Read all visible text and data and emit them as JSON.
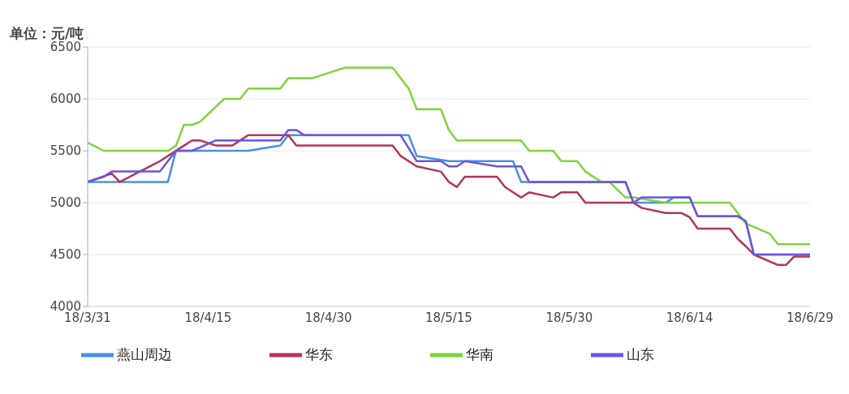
{
  "chart_data": {
    "type": "line",
    "ylabel": "单位：元/吨",
    "xlim": [
      "--03-31",
      "--06-29"
    ],
    "xticks": [
      {
        "value": "--03-31",
        "label": "18/3/31"
      },
      {
        "value": "--04-15",
        "label": "18/4/15"
      },
      {
        "value": "--04-30",
        "label": "18/4/30"
      },
      {
        "value": "--05-15",
        "label": "18/5/15"
      },
      {
        "value": "--05-30",
        "label": "18/5/30"
      },
      {
        "value": "--06-14",
        "label": "18/6/14"
      },
      {
        "value": "--06-29",
        "label": "18/6/29"
      }
    ],
    "ylim": [
      4000,
      6500
    ],
    "yticks": [
      4000,
      4500,
      5000,
      5500,
      6000,
      6500
    ],
    "grid": "y",
    "legend": "bottom",
    "marker": "none",
    "line_style": "solid",
    "series": [
      {
        "name": "燕山周边",
        "color": "#4a90e2",
        "x": [
          "--03-31",
          "--04-10",
          "--04-11",
          "--04-20",
          "--04-24",
          "--04-25",
          "--05-10",
          "--05-11",
          "--05-15",
          "--05-23",
          "--05-24",
          "--06-06",
          "--06-07",
          "--06-11",
          "--06-12",
          "--06-14",
          "--06-15",
          "--06-20",
          "--06-21",
          "--06-22",
          "--06-29"
        ],
        "values": [
          5200,
          5200,
          5500,
          5500,
          5550,
          5650,
          5650,
          5450,
          5400,
          5400,
          5200,
          5200,
          5000,
          5000,
          5050,
          5050,
          4870,
          4870,
          4820,
          4500,
          4500
        ]
      },
      {
        "name": "华东",
        "color": "#b5345a",
        "x": [
          "--03-31",
          "--04-03",
          "--04-04",
          "--04-09",
          "--04-10",
          "--04-12",
          "--04-13",
          "--04-14",
          "--04-16",
          "--04-18",
          "--04-20",
          "--04-25",
          "--04-26",
          "--05-08",
          "--05-09",
          "--05-11",
          "--05-14",
          "--05-15",
          "--05-16",
          "--05-17",
          "--05-21",
          "--05-22",
          "--05-24",
          "--05-25",
          "--05-28",
          "--05-29",
          "--05-31",
          "--06-01",
          "--06-07",
          "--06-08",
          "--06-11",
          "--06-13",
          "--06-14",
          "--06-15",
          "--06-19",
          "--06-20",
          "--06-21",
          "--06-22",
          "--06-25",
          "--06-26",
          "--06-27",
          "--06-29"
        ],
        "values": [
          5200,
          5280,
          5200,
          5400,
          5450,
          5550,
          5600,
          5600,
          5550,
          5550,
          5650,
          5650,
          5550,
          5550,
          5450,
          5350,
          5300,
          5200,
          5150,
          5250,
          5250,
          5150,
          5050,
          5100,
          5050,
          5100,
          5100,
          5000,
          5000,
          4950,
          4900,
          4900,
          4860,
          4750,
          4750,
          4650,
          4580,
          4500,
          4400,
          4400,
          4480,
          4480
        ]
      },
      {
        "name": "华南",
        "color": "#7ed43a",
        "x": [
          "--03-31",
          "--04-02",
          "--04-10",
          "--04-11",
          "--04-12",
          "--04-13",
          "--04-14",
          "--04-17",
          "--04-19",
          "--04-20",
          "--04-24",
          "--04-25",
          "--04-28",
          "--05-02",
          "--05-08",
          "--05-10",
          "--05-11",
          "--05-14",
          "--05-15",
          "--05-16",
          "--05-24",
          "--05-25",
          "--05-28",
          "--05-29",
          "--05-31",
          "--06-01",
          "--06-03",
          "--06-04",
          "--06-06",
          "--06-07",
          "--06-11",
          "--06-19",
          "--06-21",
          "--06-24",
          "--06-25",
          "--06-29"
        ],
        "values": [
          5580,
          5500,
          5500,
          5550,
          5750,
          5750,
          5780,
          6000,
          6000,
          6100,
          6100,
          6200,
          6200,
          6300,
          6300,
          6100,
          5900,
          5900,
          5700,
          5600,
          5600,
          5500,
          5500,
          5400,
          5400,
          5300,
          5200,
          5200,
          5050,
          5050,
          5000,
          5000,
          4800,
          4700,
          4600,
          4600
        ]
      },
      {
        "name": "山东",
        "color": "#6a55e0",
        "x": [
          "--03-31",
          "--04-02",
          "--04-03",
          "--04-09",
          "--04-11",
          "--04-13",
          "--04-16",
          "--04-24",
          "--04-25",
          "--04-26",
          "--04-27",
          "--05-09",
          "--05-11",
          "--05-14",
          "--05-15",
          "--05-16",
          "--05-17",
          "--05-21",
          "--05-24",
          "--05-25",
          "--06-06",
          "--06-07",
          "--06-08",
          "--06-14",
          "--06-15",
          "--06-20",
          "--06-21",
          "--06-22",
          "--06-29"
        ],
        "values": [
          5200,
          5250,
          5300,
          5300,
          5500,
          5500,
          5600,
          5600,
          5700,
          5700,
          5650,
          5650,
          5400,
          5400,
          5350,
          5350,
          5400,
          5350,
          5350,
          5200,
          5200,
          5000,
          5050,
          5050,
          4870,
          4870,
          4820,
          4500,
          4500
        ]
      }
    ]
  }
}
